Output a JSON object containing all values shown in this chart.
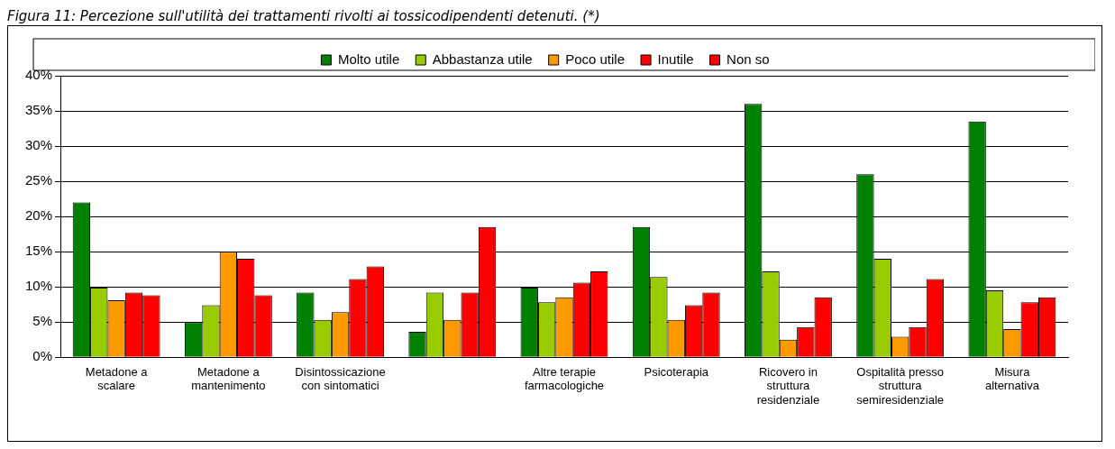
{
  "chart_data": {
    "type": "bar",
    "title": "Figura 11: Percezione sull'utilità dei trattamenti rivolti ai tossicodipendenti detenuti. (*)",
    "categories": [
      "Metadone a scalare",
      "Metadone a mantenimento",
      "Disintossicazione con sintomatici",
      null,
      "Altre terapie farmacologiche",
      "Psicoterapia",
      "Ricovero in struttura residenziale",
      "Ospitalità presso struttura semiresidenziale",
      "Misura alternativa"
    ],
    "series": [
      {
        "name": "Molto utile",
        "color": "#008000",
        "values": [
          22,
          5,
          9.2,
          3.6,
          9.9,
          18.5,
          36,
          26,
          33.5
        ]
      },
      {
        "name": "Abbastanza utile",
        "color": "#99cc00",
        "values": [
          9.9,
          7.4,
          5.3,
          9.2,
          7.8,
          11.4,
          12.2,
          14,
          9.5
        ]
      },
      {
        "name": "Poco utile",
        "color": "#ff9900",
        "values": [
          8.1,
          15,
          6.4,
          5.3,
          8.5,
          5.3,
          2.5,
          2.9,
          4
        ]
      },
      {
        "name": "Inutile",
        "color": "#ff0000",
        "values": [
          9.2,
          14,
          11.1,
          9.2,
          10.6,
          7.4,
          4.3,
          4.3,
          7.8
        ]
      },
      {
        "name": "Non so",
        "color": "#ff0000",
        "values": [
          8.8,
          8.8,
          12.9,
          18.5,
          12.2,
          9.2,
          8.5,
          11.1,
          8.5
        ]
      }
    ],
    "ylim": [
      0,
      40
    ],
    "yticks": [
      {
        "value": 0,
        "label": "0%"
      },
      {
        "value": 5,
        "label": "5%"
      },
      {
        "value": 10,
        "label": "10%"
      },
      {
        "value": 15,
        "label": "15%"
      },
      {
        "value": 20,
        "label": "20%"
      },
      {
        "value": 25,
        "label": "25%"
      },
      {
        "value": 30,
        "label": "30%"
      },
      {
        "value": 35,
        "label": "35%"
      },
      {
        "value": 40,
        "label": "40%"
      }
    ],
    "grid": "y",
    "legend": "top"
  }
}
